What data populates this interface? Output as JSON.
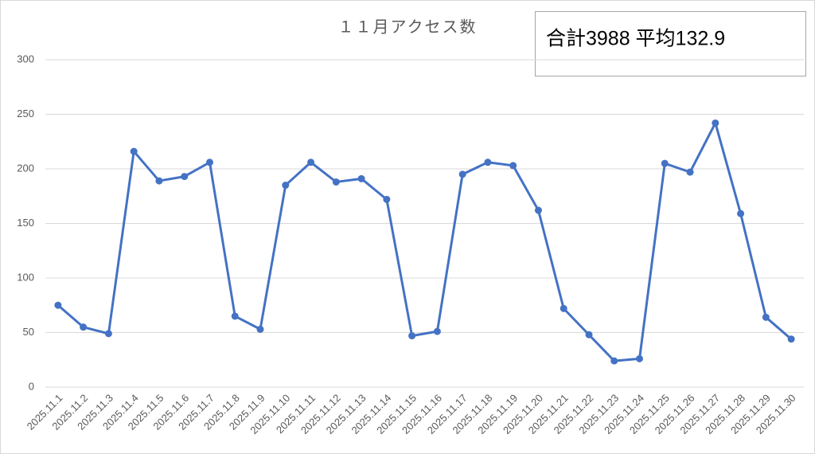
{
  "chart_data": {
    "type": "line",
    "title": "１１月アクセス数",
    "annotation": "合計3988  平均132.9",
    "categories": [
      "2025.11.1",
      "2025.11.2",
      "2025.11.3",
      "2025.11.4",
      "2025.11.5",
      "2025.11.6",
      "2025.11.7",
      "2025.11.8",
      "2025.11.9",
      "2025.11.10",
      "2025.11.11",
      "2025.11.12",
      "2025.11.13",
      "2025.11.14",
      "2025.11.15",
      "2025.11.16",
      "2025.11.17",
      "2025.11.18",
      "2025.11.19",
      "2025.11.20",
      "2025.11.21",
      "2025.11.22",
      "2025.11.23",
      "2025.11.24",
      "2025.11.25",
      "2025.11.26",
      "2025.11.27",
      "2025.11.28",
      "2025.11.29",
      "2025.11.30"
    ],
    "values": [
      75,
      55,
      49,
      216,
      189,
      193,
      206,
      65,
      53,
      185,
      206,
      188,
      191,
      172,
      47,
      51,
      195,
      206,
      203,
      162,
      72,
      48,
      24,
      26,
      205,
      197,
      242,
      159,
      64,
      44
    ],
    "color": "#4472c4",
    "ylim": [
      0,
      300
    ],
    "yticks": [
      0,
      50,
      100,
      150,
      200,
      250,
      300
    ],
    "grid": true
  }
}
